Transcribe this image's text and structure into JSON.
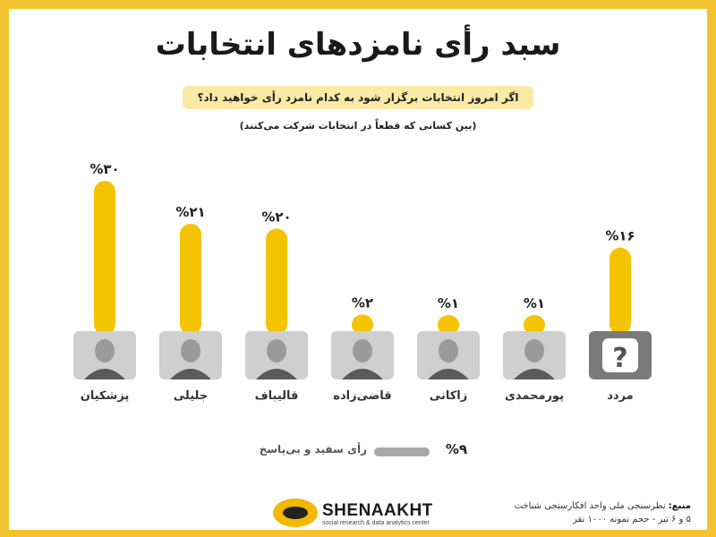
{
  "title": "سبد رأی نامزدهای انتخابات",
  "question": "اگر امروز انتخابات برگزار شود به کدام نامزد رأی خواهید داد؟",
  "subnote": "(بین کسانی که قطعاً در انتخابات شرکت می‌کنند)",
  "chart_data": {
    "type": "bar",
    "categories": [
      "پزشکیان",
      "جلیلی",
      "قالیباف",
      "قاضی‌زاده",
      "زاکانی",
      "پورمحمدی",
      "مردد"
    ],
    "values": [
      30,
      21,
      20,
      2,
      1,
      1,
      16
    ],
    "value_labels": [
      "%۳۰",
      "%۲۱",
      "%۲۰",
      "%۲",
      "%۱",
      "%۱",
      "%۱۶"
    ],
    "ylim": [
      0,
      30
    ],
    "bar_color": "#f5c400",
    "grid": false,
    "legend_item": {
      "label": "رأی سفید و بی‌پاسخ",
      "value": 9,
      "value_label": "%۹",
      "color": "#a8a8a8"
    }
  },
  "icons": [
    "portrait-photo",
    "portrait-photo",
    "portrait-photo",
    "portrait-photo",
    "portrait-photo",
    "portrait-photo",
    "question-mark-icon"
  ],
  "brand": {
    "name": "SHENAAKHT",
    "tagline": "social research & data analytics center"
  },
  "source": {
    "label": "منبع:",
    "line1": "نظرسنجی ملی واحد افکارسنجی شناخت",
    "line2": "۵ و ۶ تیر - حجم نمونه ۱۰۰۰ نفر"
  },
  "colors": {
    "accent": "#f5c400",
    "frame": "#f4c430",
    "icon_bg": "#7a7a7a"
  }
}
